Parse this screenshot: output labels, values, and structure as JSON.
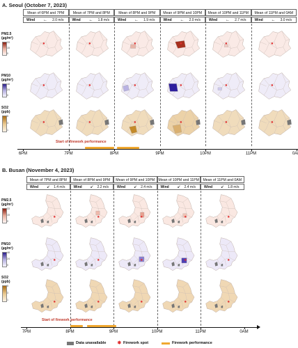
{
  "colors": {
    "pm25": "#b03a2e",
    "pm10": "#3b2fa8",
    "so2": "#c88a2a",
    "firework_performance": "#f0a830",
    "firework_spot": "#e03030",
    "data_unavailable": "#777777"
  },
  "sectionA": {
    "title": "A. Seoul (October 7, 2023)",
    "headers": [
      "Mean of 6PM and 7PM",
      "Mean of 7PM and 8PM",
      "Mean of 8PM and 9PM",
      "Mean of 9PM and 10PM",
      "Mean of 10PM and 11PM",
      "Mean of 11PM and 0AM"
    ],
    "wind": [
      {
        "label": "Wind",
        "arrow": "←",
        "value": "2.0 m/s"
      },
      {
        "label": "Wind",
        "arrow": "←",
        "value": "1.8 m/s"
      },
      {
        "label": "Wind",
        "arrow": "←",
        "value": "1.9 m/s"
      },
      {
        "label": "Wind",
        "arrow": "←",
        "value": "2.0 m/s"
      },
      {
        "label": "Wind",
        "arrow": "←",
        "value": "2.7 m/s"
      },
      {
        "label": "Wind",
        "arrow": "←",
        "value": "3.0 m/s"
      }
    ],
    "legend": {
      "pm25": {
        "label": "PM2.5",
        "unit": "(µg/m³)",
        "max": "33",
        "mid": "15",
        "min": "0"
      },
      "pm10": {
        "label": "PM10",
        "unit": "(µg/m³)",
        "max": "48",
        "mid": "24",
        "min": "0"
      },
      "so2": {
        "label": "SO2",
        "unit": "(ppb)",
        "max": "5",
        "mid": "3",
        "min": "1"
      }
    },
    "times": [
      "6PM",
      "7PM",
      "8PM",
      "9PM",
      "10PM",
      "11PM",
      "0AM"
    ],
    "start_label": "Start of firework performance"
  },
  "sectionB": {
    "title": "B. Busan (November 4, 2023)",
    "headers": [
      "Mean of 7PM and 8PM",
      "Mean of 8PM and 9PM",
      "Mean of 9PM and 10PM",
      "Mean of 10PM and 11PM",
      "Mean of 11PM and 0AM"
    ],
    "wind": [
      {
        "label": "Wind",
        "arrow": "↙",
        "value": "1.4 m/s"
      },
      {
        "label": "Wind",
        "arrow": "↙",
        "value": "2.2 m/s"
      },
      {
        "label": "Wind",
        "arrow": "↙",
        "value": "2.4 m/s"
      },
      {
        "label": "Wind",
        "arrow": "↙",
        "value": "2.4 m/s"
      },
      {
        "label": "Wind",
        "arrow": "↙",
        "value": "1.8 m/s"
      }
    ],
    "legend": {
      "pm25": {
        "label": "PM2.5",
        "unit": "(µg/m³)",
        "max": "33",
        "mid": "15",
        "min": "0"
      },
      "pm10": {
        "label": "PM10",
        "unit": "(µg/m³)",
        "max": "48",
        "mid": "24",
        "min": "0"
      },
      "so2": {
        "label": "SO2",
        "unit": "(ppb)",
        "max": "5",
        "mid": "3",
        "min": "1"
      }
    },
    "times": [
      "7PM",
      "8PM",
      "9PM",
      "10PM",
      "11PM",
      "0AM"
    ],
    "start_label": "Start of firework performance"
  },
  "legend_bottom": {
    "data_unavailable": "Data unavailable",
    "firework_spot": "Firework spot",
    "firework_performance": "Firework performance"
  }
}
